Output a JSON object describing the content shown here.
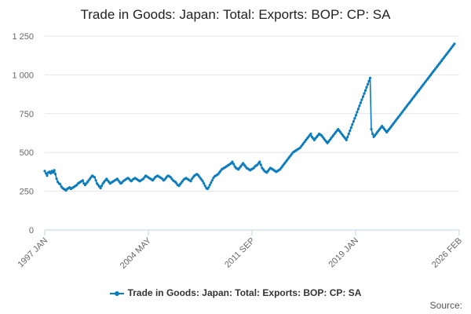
{
  "title": "Trade in Goods: Japan: Total: Exports: BOP: CP: SA",
  "source_label": "Source:",
  "colors": {
    "series": "#0b7cbe",
    "grid": "#e6e6e6",
    "axis": "#c0d0e0",
    "text": "#666666"
  },
  "chart_data": {
    "type": "line",
    "title": "Trade in Goods: Japan: Total: Exports: BOP: CP: SA",
    "xlabel": "",
    "ylabel": "",
    "ylim": [
      0,
      1250
    ],
    "yticks": [
      0,
      250,
      500,
      750,
      1000,
      1250
    ],
    "ytick_labels": [
      "0",
      "250",
      "500",
      "750",
      "1 000",
      "1 250"
    ],
    "x_range": [
      "1997-01",
      "2026-02"
    ],
    "xtick_labels": [
      "1997 JAN",
      "2004 MAY",
      "2011 SEP",
      "2019 JAN",
      "2026 FEB"
    ],
    "grid": "horizontal",
    "legend": "bottom-center",
    "series": [
      {
        "name": "Trade in Goods: Japan: Total: Exports: BOP: CP: SA",
        "frequency": "monthly",
        "start": "1997-01",
        "values": [
          380,
          365,
          350,
          370,
          375,
          365,
          380,
          370,
          385,
          360,
          330,
          310,
          300,
          295,
          280,
          270,
          265,
          260,
          255,
          265,
          270,
          275,
          265,
          270,
          275,
          280,
          285,
          290,
          300,
          305,
          310,
          315,
          320,
          300,
          290,
          300,
          310,
          320,
          330,
          340,
          350,
          345,
          340,
          320,
          300,
          290,
          280,
          270,
          285,
          300,
          310,
          320,
          330,
          320,
          310,
          300,
          305,
          310,
          315,
          320,
          325,
          330,
          320,
          310,
          300,
          305,
          315,
          320,
          325,
          330,
          335,
          330,
          320,
          315,
          325,
          330,
          335,
          330,
          325,
          320,
          315,
          320,
          325,
          330,
          340,
          350,
          345,
          340,
          335,
          330,
          325,
          320,
          330,
          340,
          345,
          350,
          345,
          340,
          335,
          330,
          320,
          325,
          335,
          345,
          350,
          345,
          340,
          330,
          320,
          315,
          310,
          300,
          290,
          285,
          295,
          305,
          315,
          325,
          330,
          335,
          330,
          325,
          320,
          315,
          330,
          340,
          350,
          355,
          360,
          355,
          345,
          335,
          325,
          315,
          300,
          285,
          270,
          265,
          275,
          290,
          305,
          320,
          335,
          345,
          350,
          355,
          360,
          370,
          380,
          390,
          395,
          400,
          405,
          410,
          415,
          420,
          425,
          430,
          440,
          425,
          410,
          400,
          395,
          390,
          400,
          410,
          420,
          430,
          420,
          410,
          400,
          395,
          390,
          385,
          390,
          395,
          400,
          410,
          415,
          420,
          430,
          440,
          420,
          400,
          390,
          380,
          375,
          370,
          380,
          390,
          400,
          395,
          390,
          385,
          380,
          375,
          380,
          385,
          390,
          400,
          410,
          420,
          430,
          440,
          450,
          460,
          470,
          480,
          490,
          500,
          505,
          510,
          515,
          520,
          525,
          530,
          540,
          550,
          560,
          570,
          580,
          590,
          600,
          610,
          620,
          600,
          590,
          580,
          590,
          600,
          610,
          620,
          615,
          610,
          600,
          590,
          580,
          570,
          560,
          570,
          580,
          590,
          600,
          610,
          620,
          630,
          640,
          650,
          640,
          630,
          620,
          610,
          600,
          590,
          580,
          600,
          620,
          640,
          660,
          680,
          700,
          720,
          740,
          760,
          780,
          800,
          820,
          840,
          860,
          880,
          900,
          920,
          940,
          960,
          980,
          650,
          620,
          600,
          610,
          620,
          630,
          640,
          650,
          660,
          670,
          660,
          650,
          640,
          630,
          640,
          650,
          660,
          670,
          680,
          690,
          700,
          710,
          720,
          730,
          740,
          750,
          760,
          770,
          780,
          790,
          800,
          810,
          820,
          830,
          840,
          850,
          860,
          870,
          880,
          890,
          900,
          910,
          920,
          930,
          940,
          950,
          960,
          970,
          980,
          990,
          1000,
          1010,
          1020,
          1030,
          1040,
          1050,
          1060,
          1070,
          1080,
          1090,
          1100,
          1110,
          1120,
          1130,
          1140,
          1150,
          1160,
          1170,
          1180,
          1190,
          1200
        ]
      }
    ]
  }
}
